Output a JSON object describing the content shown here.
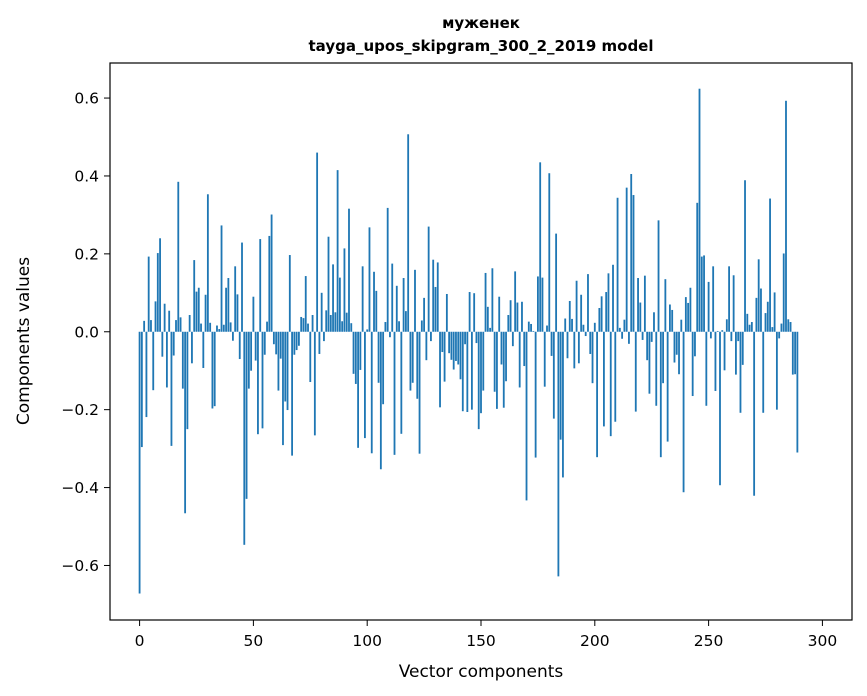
{
  "chart_data": {
    "type": "bar",
    "title": "муженек",
    "subtitle": "tayga_upos_skipgram_300_2_2019 model",
    "xlabel": "Vector components",
    "ylabel": "Components values",
    "xlim": [
      -13,
      313
    ],
    "ylim": [
      -0.74,
      0.69
    ],
    "xticks": [
      0,
      50,
      100,
      150,
      200,
      250,
      300
    ],
    "yticks": [
      -0.6,
      -0.4,
      -0.2,
      0.0,
      0.2,
      0.4,
      0.6
    ],
    "ytick_labels": [
      "−0.6",
      "−0.4",
      "−0.2",
      "0.0",
      "0.2",
      "0.4",
      "0.6"
    ],
    "grid": false,
    "bar_color": "#1f77b4",
    "values": [
      -0.672,
      -0.296,
      0.028,
      -0.219,
      0.193,
      0.03,
      -0.15,
      0.078,
      0.202,
      0.24,
      -0.064,
      0.072,
      -0.143,
      0.054,
      -0.293,
      -0.061,
      0.03,
      0.385,
      0.037,
      -0.146,
      -0.466,
      -0.25,
      0.043,
      -0.081,
      0.184,
      0.103,
      0.113,
      0.021,
      -0.093,
      0.095,
      0.353,
      0.023,
      -0.197,
      -0.191,
      0.016,
      0.007,
      0.273,
      0.018,
      0.113,
      0.138,
      0.024,
      -0.023,
      0.168,
      0.096,
      -0.07,
      0.229,
      -0.547,
      -0.429,
      -0.146,
      -0.1,
      0.09,
      -0.074,
      -0.263,
      0.238,
      -0.248,
      -0.059,
      0.026,
      0.246,
      0.301,
      -0.032,
      -0.058,
      -0.151,
      -0.069,
      -0.291,
      -0.179,
      -0.201,
      0.197,
      -0.318,
      -0.059,
      -0.047,
      -0.036,
      0.038,
      0.035,
      0.143,
      0.021,
      -0.129,
      0.043,
      -0.266,
      0.46,
      -0.057,
      0.1,
      -0.024,
      0.055,
      0.244,
      0.043,
      0.173,
      0.05,
      0.415,
      0.139,
      0.027,
      0.214,
      0.049,
      0.316,
      0.022,
      -0.108,
      -0.134,
      -0.298,
      -0.098,
      0.168,
      -0.273,
      0.006,
      0.268,
      -0.312,
      0.154,
      0.105,
      -0.131,
      -0.353,
      -0.186,
      0.025,
      0.318,
      -0.014,
      0.175,
      -0.316,
      0.118,
      0.027,
      -0.262,
      0.138,
      0.053,
      0.507,
      -0.151,
      -0.131,
      0.159,
      -0.172,
      -0.313,
      0.029,
      0.087,
      -0.073,
      0.27,
      -0.024,
      0.185,
      0.115,
      0.178,
      -0.194,
      -0.052,
      -0.128,
      0.097,
      -0.055,
      -0.072,
      -0.097,
      -0.075,
      -0.084,
      -0.122,
      -0.204,
      -0.032,
      -0.206,
      0.102,
      -0.2,
      0.099,
      -0.029,
      -0.25,
      -0.209,
      -0.151,
      0.151,
      0.064,
      0.01,
      0.163,
      -0.154,
      -0.198,
      0.09,
      -0.084,
      -0.195,
      -0.127,
      0.043,
      0.081,
      -0.037,
      0.155,
      0.075,
      -0.143,
      0.077,
      -0.088,
      -0.433,
      0.026,
      0.02,
      0.002,
      -0.323,
      0.142,
      0.435,
      0.139,
      -0.141,
      0.016,
      0.407,
      -0.062,
      -0.223,
      0.252,
      -0.628,
      -0.277,
      -0.374,
      0.034,
      -0.068,
      0.079,
      0.033,
      -0.094,
      0.131,
      -0.081,
      0.095,
      0.018,
      -0.011,
      0.148,
      -0.057,
      -0.132,
      0.023,
      -0.322,
      0.061,
      0.091,
      -0.243,
      0.102,
      0.15,
      -0.268,
      0.172,
      -0.231,
      0.344,
      0.01,
      -0.018,
      0.031,
      0.37,
      -0.031,
      0.405,
      0.351,
      -0.205,
      0.138,
      0.075,
      -0.021,
      0.144,
      -0.073,
      -0.159,
      -0.026,
      0.05,
      -0.19,
      0.286,
      -0.322,
      -0.132,
      0.135,
      -0.282,
      0.07,
      0.056,
      -0.079,
      -0.059,
      -0.109,
      0.031,
      -0.412,
      0.089,
      0.074,
      0.113,
      -0.165,
      -0.063,
      0.331,
      0.624,
      0.193,
      0.196,
      -0.19,
      0.128,
      -0.017,
      0.168,
      -0.152,
      0.002,
      -0.394,
      0.004,
      -0.099,
      0.032,
      0.168,
      -0.024,
      0.145,
      -0.11,
      -0.024,
      -0.208,
      -0.085,
      0.389,
      0.046,
      0.018,
      0.025,
      -0.421,
      0.087,
      0.186,
      0.111,
      -0.208,
      0.048,
      0.077,
      0.342,
      0.012,
      0.101,
      -0.2,
      -0.017,
      0.021,
      0.201,
      0.593,
      0.032,
      0.025,
      -0.11,
      -0.109,
      -0.31
    ]
  }
}
